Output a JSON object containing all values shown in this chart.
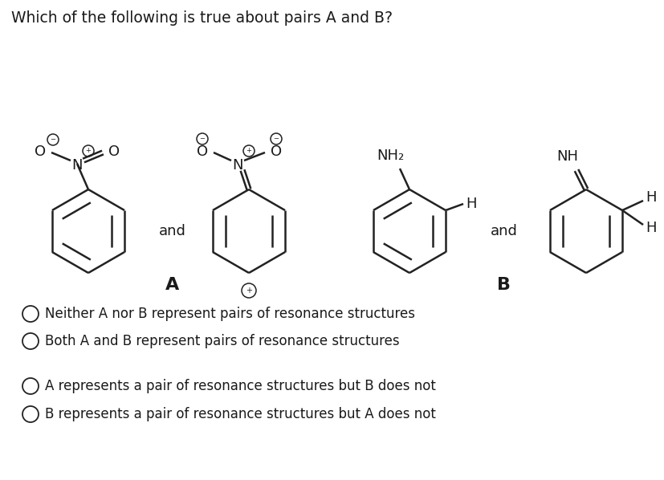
{
  "title": "Which of the following is true about pairs A and B?",
  "title_fontsize": 13.5,
  "bg_color": "#ffffff",
  "text_color": "#1a1a1a",
  "options": [
    "Neither A nor B represent pairs of resonance structures",
    "Both A and B represent pairs of resonance structures",
    "A represents a pair of resonance structures but B does not",
    "B represents a pair of resonance structures but A does not"
  ],
  "ring_r": 0.068,
  "lw": 1.8
}
